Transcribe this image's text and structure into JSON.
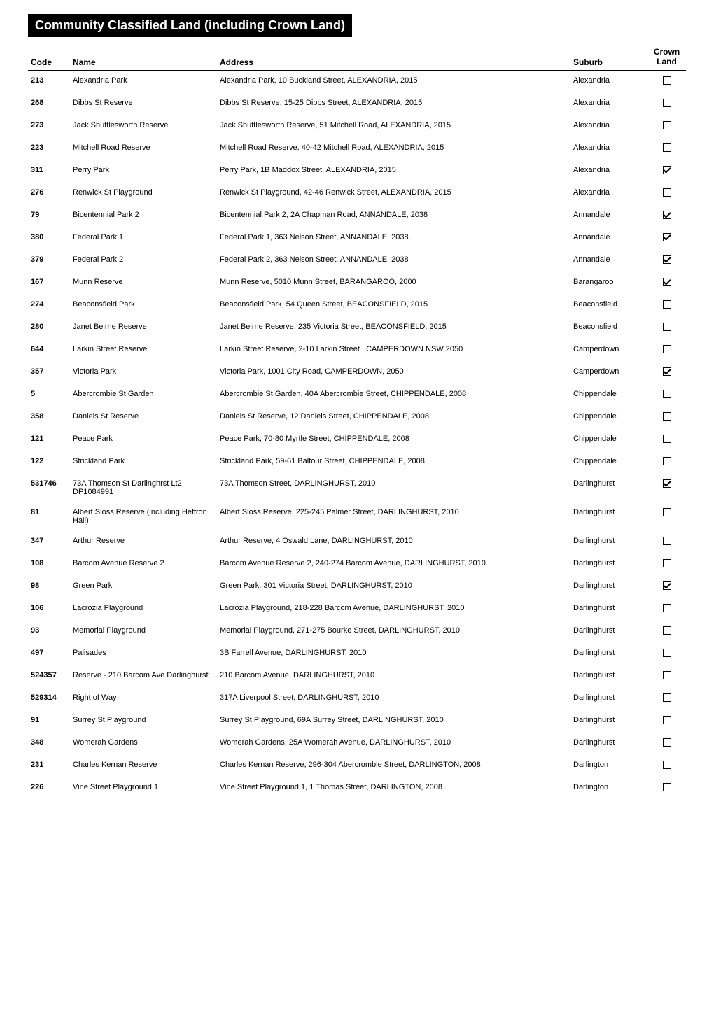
{
  "title": "Community Classified Land (including Crown Land)",
  "columns": {
    "code": "Code",
    "name": "Name",
    "address": "Address",
    "suburb": "Suburb",
    "crown": "Crown Land"
  },
  "rows": [
    {
      "code": "213",
      "name": "Alexandria Park",
      "address": "Alexandria Park, 10 Buckland Street, ALEXANDRIA, 2015",
      "suburb": "Alexandria",
      "crown": false
    },
    {
      "code": "268",
      "name": "Dibbs St Reserve",
      "address": "Dibbs St Reserve, 15-25 Dibbs Street, ALEXANDRIA, 2015",
      "suburb": "Alexandria",
      "crown": false
    },
    {
      "code": "273",
      "name": "Jack Shuttlesworth Reserve",
      "address": "Jack Shuttlesworth Reserve, 51 Mitchell Road, ALEXANDRIA, 2015",
      "suburb": "Alexandria",
      "crown": false
    },
    {
      "code": "223",
      "name": "Mitchell Road Reserve",
      "address": "Mitchell Road Reserve, 40-42 Mitchell Road, ALEXANDRIA, 2015",
      "suburb": "Alexandria",
      "crown": false
    },
    {
      "code": "311",
      "name": "Perry Park",
      "address": "Perry Park, 1B Maddox Street, ALEXANDRIA, 2015",
      "suburb": "Alexandria",
      "crown": true
    },
    {
      "code": "276",
      "name": "Renwick St Playground",
      "address": "Renwick St Playground, 42-46 Renwick Street, ALEXANDRIA, 2015",
      "suburb": "Alexandria",
      "crown": false
    },
    {
      "code": "79",
      "name": "Bicentennial Park 2",
      "address": "Bicentennial Park 2, 2A Chapman Road, ANNANDALE, 2038",
      "suburb": "Annandale",
      "crown": true
    },
    {
      "code": "380",
      "name": "Federal Park 1",
      "address": "Federal Park 1, 363 Nelson Street, ANNANDALE, 2038",
      "suburb": "Annandale",
      "crown": true
    },
    {
      "code": "379",
      "name": "Federal Park 2",
      "address": "Federal Park 2, 363 Nelson Street, ANNANDALE, 2038",
      "suburb": "Annandale",
      "crown": true
    },
    {
      "code": "167",
      "name": "Munn Reserve",
      "address": "Munn Reserve, 5010 Munn Street, BARANGAROO, 2000",
      "suburb": "Barangaroo",
      "crown": true
    },
    {
      "code": "274",
      "name": "Beaconsfield Park",
      "address": "Beaconsfield Park, 54 Queen Street, BEACONSFIELD, 2015",
      "suburb": "Beaconsfield",
      "crown": false
    },
    {
      "code": "280",
      "name": "Janet Beirne Reserve",
      "address": "Janet Beirne Reserve, 235 Victoria Street, BEACONSFIELD, 2015",
      "suburb": "Beaconsfield",
      "crown": false
    },
    {
      "code": "644",
      "name": "Larkin Street Reserve",
      "address": "Larkin Street Reserve, 2-10 Larkin Street , CAMPERDOWN  NSW  2050",
      "suburb": "Camperdown",
      "crown": false
    },
    {
      "code": "357",
      "name": "Victoria Park",
      "address": "Victoria Park, 1001 City Road, CAMPERDOWN, 2050",
      "suburb": "Camperdown",
      "crown": true
    },
    {
      "code": "5",
      "name": "Abercrombie St Garden",
      "address": "Abercrombie St Garden, 40A Abercrombie Street, CHIPPENDALE, 2008",
      "suburb": "Chippendale",
      "crown": false
    },
    {
      "code": "358",
      "name": "Daniels St Reserve",
      "address": "Daniels St Reserve, 12 Daniels Street, CHIPPENDALE, 2008",
      "suburb": "Chippendale",
      "crown": false
    },
    {
      "code": "121",
      "name": "Peace Park",
      "address": "Peace Park, 70-80 Myrtle Street, CHIPPENDALE, 2008",
      "suburb": "Chippendale",
      "crown": false
    },
    {
      "code": "122",
      "name": "Strickland Park",
      "address": "Strickland Park, 59-61 Balfour Street, CHIPPENDALE, 2008",
      "suburb": "Chippendale",
      "crown": false
    },
    {
      "code": "531746",
      "name": "73A Thomson St Darlinghrst Lt2 DP1084991",
      "address": "73A Thomson Street, DARLINGHURST, 2010",
      "suburb": "Darlinghurst",
      "crown": true
    },
    {
      "code": "81",
      "name": "Albert Sloss Reserve (including Heffron Hall)",
      "address": "Albert Sloss Reserve, 225-245 Palmer Street, DARLINGHURST, 2010",
      "suburb": "Darlinghurst",
      "crown": false
    },
    {
      "code": "347",
      "name": "Arthur Reserve",
      "address": "Arthur Reserve, 4 Oswald Lane, DARLINGHURST, 2010",
      "suburb": "Darlinghurst",
      "crown": false
    },
    {
      "code": "108",
      "name": "Barcom Avenue Reserve 2",
      "address": "Barcom Avenue Reserve 2, 240-274 Barcom Avenue, DARLINGHURST, 2010",
      "suburb": "Darlinghurst",
      "crown": false
    },
    {
      "code": "98",
      "name": "Green Park",
      "address": "Green Park, 301 Victoria Street, DARLINGHURST, 2010",
      "suburb": "Darlinghurst",
      "crown": true
    },
    {
      "code": "106",
      "name": "Lacrozia Playground",
      "address": "Lacrozia Playground, 218-228 Barcom Avenue, DARLINGHURST, 2010",
      "suburb": "Darlinghurst",
      "crown": false
    },
    {
      "code": "93",
      "name": "Memorial Playground",
      "address": "Memorial Playground, 271-275 Bourke Street, DARLINGHURST, 2010",
      "suburb": "Darlinghurst",
      "crown": false
    },
    {
      "code": "497",
      "name": "Palisades",
      "address": "3B Farrell Avenue, DARLINGHURST, 2010",
      "suburb": "Darlinghurst",
      "crown": false
    },
    {
      "code": "524357",
      "name": "Reserve - 210 Barcom Ave Darlinghurst",
      "address": "210 Barcom Avenue, DARLINGHURST, 2010",
      "suburb": "Darlinghurst",
      "crown": false
    },
    {
      "code": "529314",
      "name": "Right of Way",
      "address": "317A Liverpool Street, DARLINGHURST, 2010",
      "suburb": "Darlinghurst",
      "crown": false
    },
    {
      "code": "91",
      "name": "Surrey St Playground",
      "address": "Surrey St Playground, 69A Surrey Street, DARLINGHURST, 2010",
      "suburb": "Darlinghurst",
      "crown": false
    },
    {
      "code": "348",
      "name": "Womerah Gardens",
      "address": "Womerah Gardens, 25A Womerah Avenue, DARLINGHURST, 2010",
      "suburb": "Darlinghurst",
      "crown": false
    },
    {
      "code": "231",
      "name": "Charles Kernan Reserve",
      "address": "Charles Kernan Reserve, 296-304 Abercrombie Street, DARLINGTON, 2008",
      "suburb": "Darlington",
      "crown": false
    },
    {
      "code": "226",
      "name": "Vine Street Playground 1",
      "address": "Vine Street Playground 1, 1 Thomas Street, DARLINGTON, 2008",
      "suburb": "Darlington",
      "crown": false
    }
  ]
}
